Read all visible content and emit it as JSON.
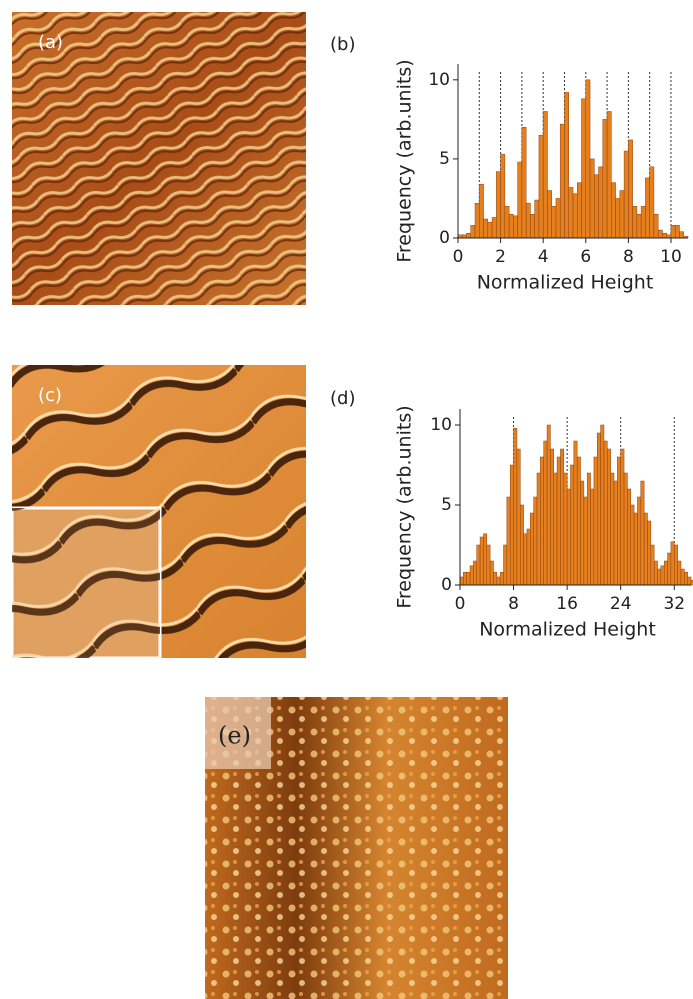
{
  "panel_labels": {
    "a": "(a)",
    "b": "(b)",
    "c": "(c)",
    "d": "(d)",
    "e": "(e)"
  },
  "chart_data": [
    {
      "type": "histogram",
      "xlabel": "Normalized Height",
      "ylabel": "Frequency (arb.units)",
      "color": "#e6801f",
      "bins": [
        0,
        0.2,
        0.4,
        0.6,
        0.8,
        1,
        1.2,
        1.4,
        1.6,
        1.8,
        2,
        2.2,
        2.4,
        2.6,
        2.8,
        3,
        3.2,
        3.4,
        3.6,
        3.8,
        4,
        4.2,
        4.4,
        4.6,
        4.8,
        5,
        5.2,
        5.4,
        5.6,
        5.8,
        6,
        6.2,
        6.4,
        6.6,
        6.8,
        7,
        7.2,
        7.4,
        7.6,
        7.8,
        8,
        8.2,
        8.4,
        8.6,
        8.8,
        9,
        9.2,
        9.4,
        9.6,
        9.8,
        10,
        10.2,
        10.4,
        10.6,
        10.8
      ],
      "values": [
        0.2,
        0.2,
        0.3,
        0.8,
        2.2,
        3.4,
        1.2,
        1.0,
        1.3,
        4.2,
        5.3,
        2.0,
        1.5,
        1.4,
        4.8,
        7.0,
        2.2,
        1.5,
        2.4,
        6.5,
        8.0,
        3.0,
        2.0,
        2.5,
        7.2,
        9.2,
        3.2,
        2.8,
        3.5,
        8.8,
        10.0,
        5.0,
        4.0,
        4.5,
        7.5,
        8.0,
        3.5,
        2.5,
        3.0,
        5.5,
        6.2,
        2.0,
        1.5,
        2.0,
        3.8,
        4.5,
        1.5,
        0.5,
        0.3,
        0.2,
        0.8,
        0.8,
        0.4,
        0.1
      ],
      "xlim": [
        0,
        10.8
      ],
      "ylim": [
        0,
        11
      ],
      "xticks": [
        0,
        2,
        4,
        6,
        8,
        10
      ],
      "yticks": [
        0,
        5,
        10
      ],
      "reference_lines": [
        1,
        2,
        3,
        4,
        5,
        6,
        7,
        8,
        9,
        10
      ]
    },
    {
      "type": "histogram",
      "xlabel": "Normalized Height",
      "ylabel": "Frequency (arb.units)",
      "color": "#e6801f",
      "bins": [
        0,
        0.5,
        1,
        1.5,
        2,
        2.5,
        3,
        3.5,
        4,
        4.5,
        5,
        5.5,
        6,
        6.5,
        7,
        7.5,
        8,
        8.5,
        9,
        9.5,
        10,
        10.5,
        11,
        11.5,
        12,
        12.5,
        13,
        13.5,
        14,
        14.5,
        15,
        15.5,
        16,
        16.5,
        17,
        17.5,
        18,
        18.5,
        19,
        19.5,
        20,
        20.5,
        21,
        21.5,
        22,
        22.5,
        23,
        23.5,
        24,
        24.5,
        25,
        25.5,
        26,
        26.5,
        27,
        27.5,
        28,
        28.5,
        29,
        29.5,
        30,
        30.5,
        31,
        31.5,
        32,
        32.5,
        33,
        33.5,
        34,
        34.5,
        35
      ],
      "values": [
        0.5,
        0.8,
        0.8,
        1.2,
        1.5,
        2.5,
        3.0,
        3.2,
        2.5,
        1.5,
        0.8,
        0.5,
        0.8,
        2.5,
        5.5,
        7.5,
        9.8,
        8.5,
        5.0,
        3.2,
        3.5,
        4.5,
        5.5,
        7.0,
        8.0,
        9.0,
        10.0,
        8.5,
        7.0,
        8.0,
        8.5,
        7.0,
        6.0,
        7.5,
        9.0,
        8.0,
        6.5,
        5.5,
        7.0,
        6.0,
        8.0,
        9.5,
        10.0,
        9.0,
        8.5,
        7.0,
        6.5,
        8.0,
        8.5,
        7.0,
        6.0,
        5.0,
        4.5,
        5.5,
        6.5,
        4.5,
        4.0,
        2.5,
        1.5,
        1.0,
        1.2,
        1.5,
        2.0,
        2.7,
        2.5,
        1.5,
        1.0,
        0.8,
        0.5,
        0.3
      ],
      "xlim": [
        0,
        34.5
      ],
      "ylim": [
        0,
        11
      ],
      "xticks": [
        0,
        8,
        16,
        24,
        32
      ],
      "yticks": [
        0,
        5,
        10
      ],
      "reference_lines": [
        8,
        16,
        24,
        32
      ]
    }
  ]
}
